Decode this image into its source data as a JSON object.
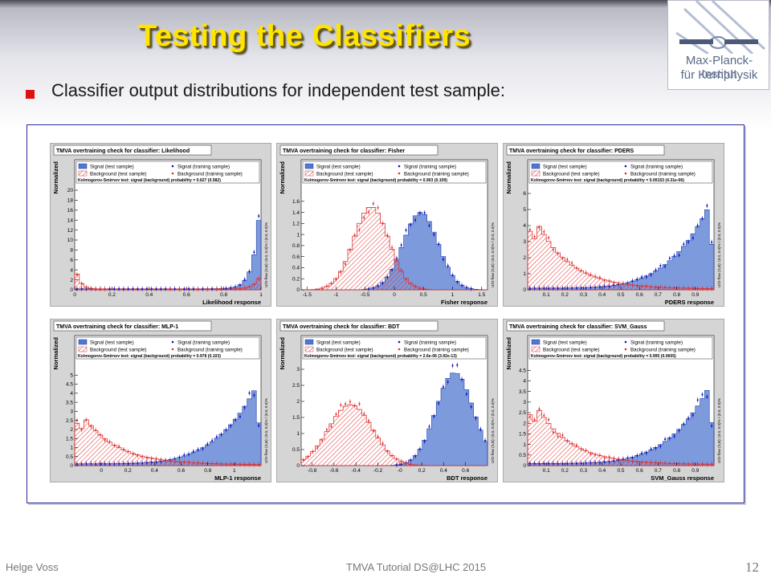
{
  "slide": {
    "title": "Testing the Classifiers",
    "bullet": "Classifier output distributions for independent test sample:",
    "footer_left": "Helge Voss",
    "footer_mid": "TMVA Tutorial   DS@LHC 2015",
    "page_number": "12"
  },
  "logo": {
    "line1": "Max-Planck-Institut",
    "line2": "für Kernphysik"
  },
  "colors": {
    "signal": "#5078d0",
    "signal_points": "#1010c0",
    "background": "#e03030",
    "title": "#ffe400"
  },
  "chart_data": [
    {
      "type": "histogram",
      "title": "TMVA overtraining check for classifier: Likelihood",
      "xlabel": "Likelihood response",
      "ylabel": "Normalized",
      "legend": [
        "Signal (test sample)",
        "Signal (training sample)",
        "Background (test sample)",
        "Background (training sample)"
      ],
      "ks_text": "Kolmogorov-Smirnov test: signal (background) probability = 0.627 (0.582)",
      "overflow_text": "U/O-flow (S,B): (0.0, 0.0)% / (0.0, 0.0)%",
      "xlim": [
        0,
        1
      ],
      "ylim": [
        0,
        20
      ],
      "xticks": [
        "0",
        "0.2",
        "0.4",
        "0.6",
        "0.8",
        "1"
      ],
      "yticks": [
        "0",
        "2",
        "4",
        "6",
        "8",
        "10",
        "12",
        "14",
        "16",
        "18",
        "20"
      ],
      "signal_shape": {
        "kind": "edge_right",
        "peak": 19.5
      },
      "background_shape": {
        "kind": "edge_left",
        "peak": 5,
        "tail_right": 3
      }
    },
    {
      "type": "histogram",
      "title": "TMVA overtraining check for classifier: Fisher",
      "xlabel": "Fisher response",
      "ylabel": "Normalized",
      "legend": [
        "Signal (test sample)",
        "Signal (training sample)",
        "Background (test sample)",
        "Background (training sample)"
      ],
      "ks_text": "Kolmogorov-Smirnov test: signal (background) probability = 0.903 (0.109)",
      "overflow_text": "U/O-flow (S,B): (0.0, 0.0)% / (0.0, 0.0)%",
      "xlim": [
        -1.6,
        1.6
      ],
      "ylim": [
        0,
        1.8
      ],
      "xticks": [
        "-1.5",
        "-1",
        "-0.5",
        "0",
        "0.5",
        "1",
        "1.5"
      ],
      "yticks": [
        "0",
        "0.2",
        "0.4",
        "0.6",
        "0.8",
        "1",
        "1.2",
        "1.4",
        "1.6"
      ],
      "signal_shape": {
        "kind": "gauss",
        "mean": 0.45,
        "sigma": 0.3,
        "peak": 1.4
      },
      "background_shape": {
        "kind": "gauss",
        "mean": -0.4,
        "sigma": 0.3,
        "peak": 1.5
      }
    },
    {
      "type": "histogram",
      "title": "TMVA overtraining check for classifier: PDERS",
      "xlabel": "PDERS response",
      "ylabel": "Normalized",
      "legend": [
        "Signal (test sample)",
        "Signal (training sample)",
        "Background (test sample)",
        "Background (training sample)"
      ],
      "ks_text": "Kolmogorov-Smirnov test: signal (background) probability = 0.00153 (4.31e-06)",
      "overflow_text": "U/O-flow (S,B): (0.0, 0.0)% / (0.0, 0.0)%",
      "xlim": [
        0,
        1
      ],
      "ylim": [
        0,
        6.2
      ],
      "xticks": [
        "0.1",
        "0.2",
        "0.3",
        "0.4",
        "0.5",
        "0.6",
        "0.7",
        "0.8",
        "0.9"
      ],
      "yticks": [
        "0",
        "1",
        "2",
        "3",
        "4",
        "5",
        "6"
      ],
      "signal_shape": {
        "kind": "rise_right",
        "peak": 5.8
      },
      "background_shape": {
        "kind": "fall_left",
        "peak": 5.5
      }
    },
    {
      "type": "histogram",
      "title": "TMVA overtraining check for classifier: MLP-1",
      "xlabel": "MLP-1 response",
      "ylabel": "Normalized",
      "legend": [
        "Signal (test sample)",
        "Signal (training sample)",
        "Background (test sample)",
        "Background (training sample)"
      ],
      "ks_text": "Kolmogorov-Smirnov test: signal (background) probability = 0.978 (0.103)",
      "overflow_text": "U/O-flow (S,B): (0.0, 0.0)% / (0.0, 0.0)%",
      "xlim": [
        -0.2,
        1.2
      ],
      "ylim": [
        0,
        5.5
      ],
      "xticks": [
        "0",
        "0.2",
        "0.4",
        "0.6",
        "0.8",
        "1"
      ],
      "yticks": [
        "0",
        "0.5",
        "1",
        "1.5",
        "2",
        "2.5",
        "3",
        "3.5",
        "4",
        "4.5",
        "5"
      ],
      "signal_shape": {
        "kind": "rise_right",
        "peak": 4.8
      },
      "background_shape": {
        "kind": "fall_left",
        "peak": 3.5
      }
    },
    {
      "type": "histogram",
      "title": "TMVA overtraining check for classifier: BDT",
      "xlabel": "BDT response",
      "ylabel": "Normalized",
      "legend": [
        "Signal (test sample)",
        "Signal (training sample)",
        "Background (test sample)",
        "Background (training sample)"
      ],
      "ks_text": "Kolmogorov-Smirnov test: signal (background) probability = 2.6e-06 (3.92e-13)",
      "overflow_text": "U/O-flow (S,B): (0.0, 0.0)% / (0.0, 0.0)%",
      "xlim": [
        -0.9,
        0.8
      ],
      "ylim": [
        0,
        3.1
      ],
      "xticks": [
        "-0.8",
        "-0.6",
        "-0.4",
        "-0.2",
        "-0",
        "0.2",
        "0.4",
        "0.6"
      ],
      "yticks": [
        "0",
        "0.5",
        "1",
        "1.5",
        "2",
        "2.5",
        "3"
      ],
      "signal_shape": {
        "kind": "gauss",
        "mean": 0.5,
        "sigma": 0.17,
        "peak": 2.9
      },
      "background_shape": {
        "kind": "gauss",
        "mean": -0.45,
        "sigma": 0.2,
        "peak": 1.9
      }
    },
    {
      "type": "histogram",
      "title": "TMVA overtraining check for classifier: SVM_Gauss",
      "xlabel": "SVM_Gauss response",
      "ylabel": "Normalized",
      "legend": [
        "Signal (test sample)",
        "Signal (training sample)",
        "Background (test sample)",
        "Background (training sample)"
      ],
      "ks_text": "Kolmogorov-Smirnov test: signal (background) probability = 0.995 (0.0605)",
      "overflow_text": "U/O-flow (S,B): (0.0, 0.0)% / (0.0, 0.0)%",
      "xlim": [
        0,
        1
      ],
      "ylim": [
        0,
        4.7
      ],
      "xticks": [
        "0.1",
        "0.2",
        "0.3",
        "0.4",
        "0.5",
        "0.6",
        "0.7",
        "0.8",
        "0.9"
      ],
      "yticks": [
        "0",
        "0.5",
        "1",
        "1.5",
        "2",
        "2.5",
        "3",
        "3.5",
        "4",
        "4.5"
      ],
      "signal_shape": {
        "kind": "rise_right",
        "peak": 4.1
      },
      "background_shape": {
        "kind": "fall_left",
        "peak": 3.6
      }
    }
  ]
}
